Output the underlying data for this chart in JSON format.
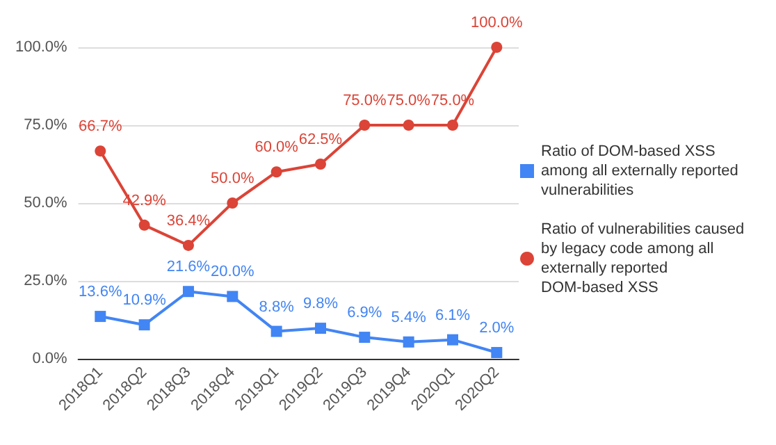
{
  "chart_data": {
    "type": "line",
    "categories": [
      "2018Q1",
      "2018Q2",
      "2018Q3",
      "2018Q4",
      "2019Q1",
      "2019Q2",
      "2019Q3",
      "2019Q4",
      "2020Q1",
      "2020Q2"
    ],
    "series": [
      {
        "name": "Ratio of DOM-based XSS among all externally reported vulnerabilities",
        "color": "#4285f4",
        "marker": "square",
        "values": [
          13.6,
          10.9,
          21.6,
          20.0,
          8.8,
          9.8,
          6.9,
          5.4,
          6.1,
          2.0
        ],
        "value_labels": [
          "13.6%",
          "10.9%",
          "21.6%",
          "20.0%",
          "8.8%",
          "9.8%",
          "6.9%",
          "5.4%",
          "6.1%",
          "2.0%"
        ]
      },
      {
        "name": "Ratio of vulnerabilities caused by legacy code among all externally reported DOM-based XSS",
        "color": "#db4437",
        "marker": "circle",
        "values": [
          66.7,
          42.9,
          36.4,
          50.0,
          60.0,
          62.5,
          75.0,
          75.0,
          75.0,
          100.0
        ],
        "value_labels": [
          "66.7%",
          "42.9%",
          "36.4%",
          "50.0%",
          "60.0%",
          "62.5%",
          "75.0%",
          "75.0%",
          "75.0%",
          "100.0%"
        ]
      }
    ],
    "ylim": [
      0,
      100
    ],
    "yticks": [
      {
        "value": 0,
        "label": "0.0%"
      },
      {
        "value": 25,
        "label": "25.0%"
      },
      {
        "value": 50,
        "label": "50.0%"
      },
      {
        "value": 75,
        "label": "75.0%"
      },
      {
        "value": 100,
        "label": "100.0%"
      }
    ],
    "grid": "y",
    "legend": "right",
    "line_style": "solid"
  }
}
